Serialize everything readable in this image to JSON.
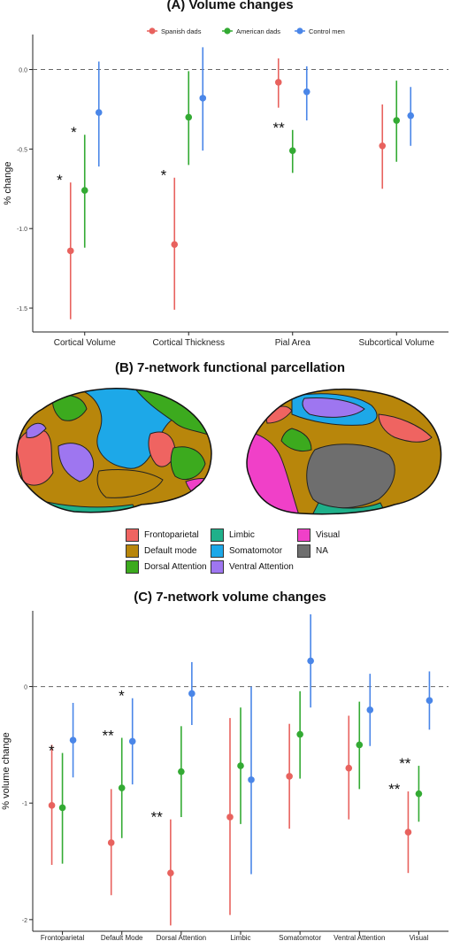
{
  "panels": {
    "a_title": "(A) Volume changes",
    "b_title": "(B) 7-network functional parcellation",
    "c_title": "(C) 7-network volume changes"
  },
  "colors": {
    "spanish": "#E8625E",
    "american": "#33AA33",
    "control": "#4A86E8",
    "frontoparietal": "#EF6461",
    "default_mode": "#B8860B",
    "dorsal_attention": "#3CAA1E",
    "limbic": "#1FB08A",
    "somatomotor": "#1DA8E8",
    "ventral_attention": "#9E76F0",
    "visual": "#F040C8",
    "na": "#6E6E6E"
  },
  "chart_data": [
    {
      "type": "scatter",
      "title": "(A) Volume changes",
      "xlabel": "",
      "ylabel": "% change",
      "ylim": [
        -1.65,
        0.22
      ],
      "yticks": [
        "0.0",
        "-0.5",
        "-1.0",
        "-1.5"
      ],
      "categories": [
        "Cortical Volume",
        "Cortical Thickness",
        "Pial Area",
        "Subcortical Volume"
      ],
      "legend": {
        "position": "top",
        "entries": [
          "Spanish dads",
          "American dads",
          "Control men"
        ]
      },
      "reference_line": 0,
      "series": [
        {
          "name": "Spanish dads",
          "values": [
            -1.14,
            -1.1,
            -0.08,
            -0.48
          ],
          "lower": [
            -1.57,
            -1.51,
            -0.24,
            -0.75
          ],
          "upper": [
            -0.71,
            -0.68,
            0.07,
            -0.22
          ]
        },
        {
          "name": "American dads",
          "values": [
            -0.76,
            -0.3,
            -0.51,
            -0.32
          ],
          "lower": [
            -1.12,
            -0.6,
            -0.65,
            -0.58
          ],
          "upper": [
            -0.41,
            -0.01,
            -0.38,
            -0.07
          ]
        },
        {
          "name": "Control men",
          "values": [
            -0.27,
            -0.18,
            -0.14,
            -0.29
          ],
          "lower": [
            -0.61,
            -0.51,
            -0.32,
            -0.48
          ],
          "upper": [
            0.05,
            0.14,
            0.02,
            -0.11
          ]
        }
      ],
      "annotations": [
        {
          "text": "*",
          "category": 0,
          "series": 0
        },
        {
          "text": "*",
          "category": 0,
          "series": 1
        },
        {
          "text": "*",
          "category": 1,
          "series": 0
        },
        {
          "text": "**",
          "category": 2,
          "series": 1
        }
      ]
    },
    {
      "type": "scatter",
      "title": "(C) 7-network volume changes",
      "xlabel": "",
      "ylabel": "% volume change",
      "ylim": [
        -2.1,
        0.65
      ],
      "yticks": [
        "0",
        "-1",
        "-2"
      ],
      "categories": [
        "Frontoparietal",
        "Default Mode",
        "Dorsal Attention",
        "Limbic",
        "Somatomotor",
        "Ventral Attention",
        "Visual"
      ],
      "reference_line": 0,
      "series": [
        {
          "name": "Spanish dads",
          "values": [
            -1.02,
            -1.34,
            -1.6,
            -1.12,
            -0.77,
            -0.7,
            -1.25
          ],
          "lower": [
            -1.53,
            -1.79,
            -2.05,
            -1.96,
            -1.22,
            -1.14,
            -1.6
          ],
          "upper": [
            -0.5,
            -0.88,
            -1.14,
            -0.27,
            -0.32,
            -0.25,
            -0.9
          ]
        },
        {
          "name": "American dads",
          "values": [
            -1.04,
            -0.87,
            -0.73,
            -0.68,
            -0.41,
            -0.5,
            -0.92
          ],
          "lower": [
            -1.52,
            -1.3,
            -1.12,
            -1.18,
            -0.79,
            -0.88,
            -1.16
          ],
          "upper": [
            -0.57,
            -0.44,
            -0.34,
            -0.18,
            -0.04,
            -0.13,
            -0.68
          ]
        },
        {
          "name": "Control men",
          "values": [
            -0.46,
            -0.47,
            -0.06,
            -0.8,
            0.22,
            -0.2,
            -0.12
          ],
          "lower": [
            -0.78,
            -0.84,
            -0.33,
            -1.61,
            -0.18,
            -0.51,
            -0.37
          ],
          "upper": [
            -0.14,
            -0.1,
            0.21,
            0.0,
            0.62,
            0.11,
            0.13
          ]
        }
      ],
      "annotations": [
        {
          "text": "*",
          "category": 0,
          "series": 1
        },
        {
          "text": "**",
          "category": 1,
          "series": 1
        },
        {
          "text": "*",
          "category": 1,
          "series": 2
        },
        {
          "text": "**",
          "category": 2,
          "series": 0
        },
        {
          "text": "**",
          "category": 6,
          "series": 0
        },
        {
          "text": "**",
          "category": 6,
          "series": 1
        }
      ]
    }
  ],
  "parcellation_legend": [
    {
      "label": "Frontoparietal",
      "color": "#EF6461"
    },
    {
      "label": "Default mode",
      "color": "#B8860B"
    },
    {
      "label": "Dorsal Attention",
      "color": "#3CAA1E"
    },
    {
      "label": "Limbic",
      "color": "#1FB08A"
    },
    {
      "label": "Somatomotor",
      "color": "#1DA8E8"
    },
    {
      "label": "Ventral Attention",
      "color": "#9E76F0"
    },
    {
      "label": "Visual",
      "color": "#F040C8"
    },
    {
      "label": "NA",
      "color": "#6E6E6E"
    }
  ]
}
